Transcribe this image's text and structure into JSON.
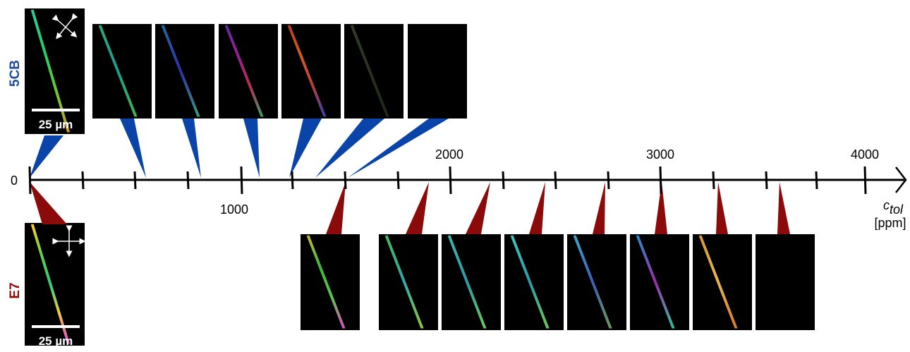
{
  "labels": {
    "top_material": "5CB",
    "bottom_material": "E7"
  },
  "scale_bars": {
    "top": "25 µm",
    "bottom": "25 µm"
  },
  "axis": {
    "ticks": [
      "0",
      "1000",
      "2000",
      "3000",
      "4000"
    ],
    "label": "c",
    "label_subscript": "tol",
    "unit": "[ppm]"
  }
}
